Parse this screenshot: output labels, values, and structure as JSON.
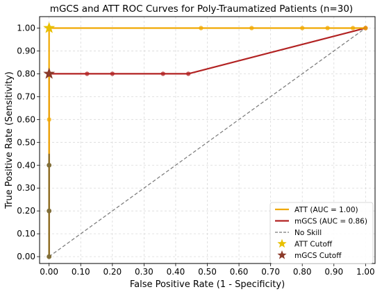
{
  "chart_data": {
    "type": "line",
    "title": "mGCS and ATT ROC Curves for Poly-Traumatized Patients (n=30)",
    "xlabel": "False Positive Rate (1 - Specificity)",
    "ylabel": "True Positive Rate (Sensitivity)",
    "xlim": [
      -0.03,
      1.03
    ],
    "ylim": [
      -0.03,
      1.05
    ],
    "xticks": [
      0.0,
      0.1,
      0.2,
      0.3,
      0.4,
      0.5,
      0.6,
      0.7,
      0.8,
      0.9,
      1.0
    ],
    "yticks": [
      0.0,
      0.1,
      0.2,
      0.3,
      0.4,
      0.5,
      0.6,
      0.7,
      0.8,
      0.9,
      1.0
    ],
    "xtick_labels": [
      "0.00",
      "0.10",
      "0.20",
      "0.30",
      "0.40",
      "0.50",
      "0.60",
      "0.70",
      "0.80",
      "0.90",
      "1.00"
    ],
    "ytick_labels": [
      "0.00",
      "0.10",
      "0.20",
      "0.30",
      "0.40",
      "0.50",
      "0.60",
      "0.70",
      "0.80",
      "0.90",
      "1.00"
    ],
    "grid": true,
    "legend_position": "bottom-right",
    "series": [
      {
        "name": "ATT (AUC = 1.00)",
        "color": "#f0a800",
        "style": "solid",
        "x": [
          0.0,
          0.0,
          0.0,
          0.0,
          0.0,
          0.0,
          0.48,
          0.64,
          0.8,
          0.88,
          0.96,
          1.0
        ],
        "y": [
          0.0,
          0.2,
          0.4,
          0.6,
          0.8,
          1.0,
          1.0,
          1.0,
          1.0,
          1.0,
          1.0,
          1.0
        ]
      },
      {
        "name": "mGCS (AUC = 0.86)",
        "color": "#b22222",
        "style": "solid",
        "x": [
          0.0,
          0.0,
          0.0,
          0.0,
          0.12,
          0.2,
          0.36,
          0.44,
          1.0
        ],
        "y": [
          0.0,
          0.2,
          0.4,
          0.8,
          0.8,
          0.8,
          0.8,
          0.8,
          1.0
        ]
      },
      {
        "name": "No Skill",
        "color": "#777777",
        "style": "dashed",
        "x": [
          0.0,
          1.0
        ],
        "y": [
          0.0,
          1.0
        ]
      }
    ],
    "cutoffs": [
      {
        "name": "ATT Cutoff",
        "x": 0.0,
        "y": 1.0,
        "color": "#e8c000",
        "marker": "star"
      },
      {
        "name": "mGCS Cutoff",
        "x": 0.0,
        "y": 0.8,
        "color": "#8b3a2a",
        "marker": "star"
      }
    ]
  }
}
